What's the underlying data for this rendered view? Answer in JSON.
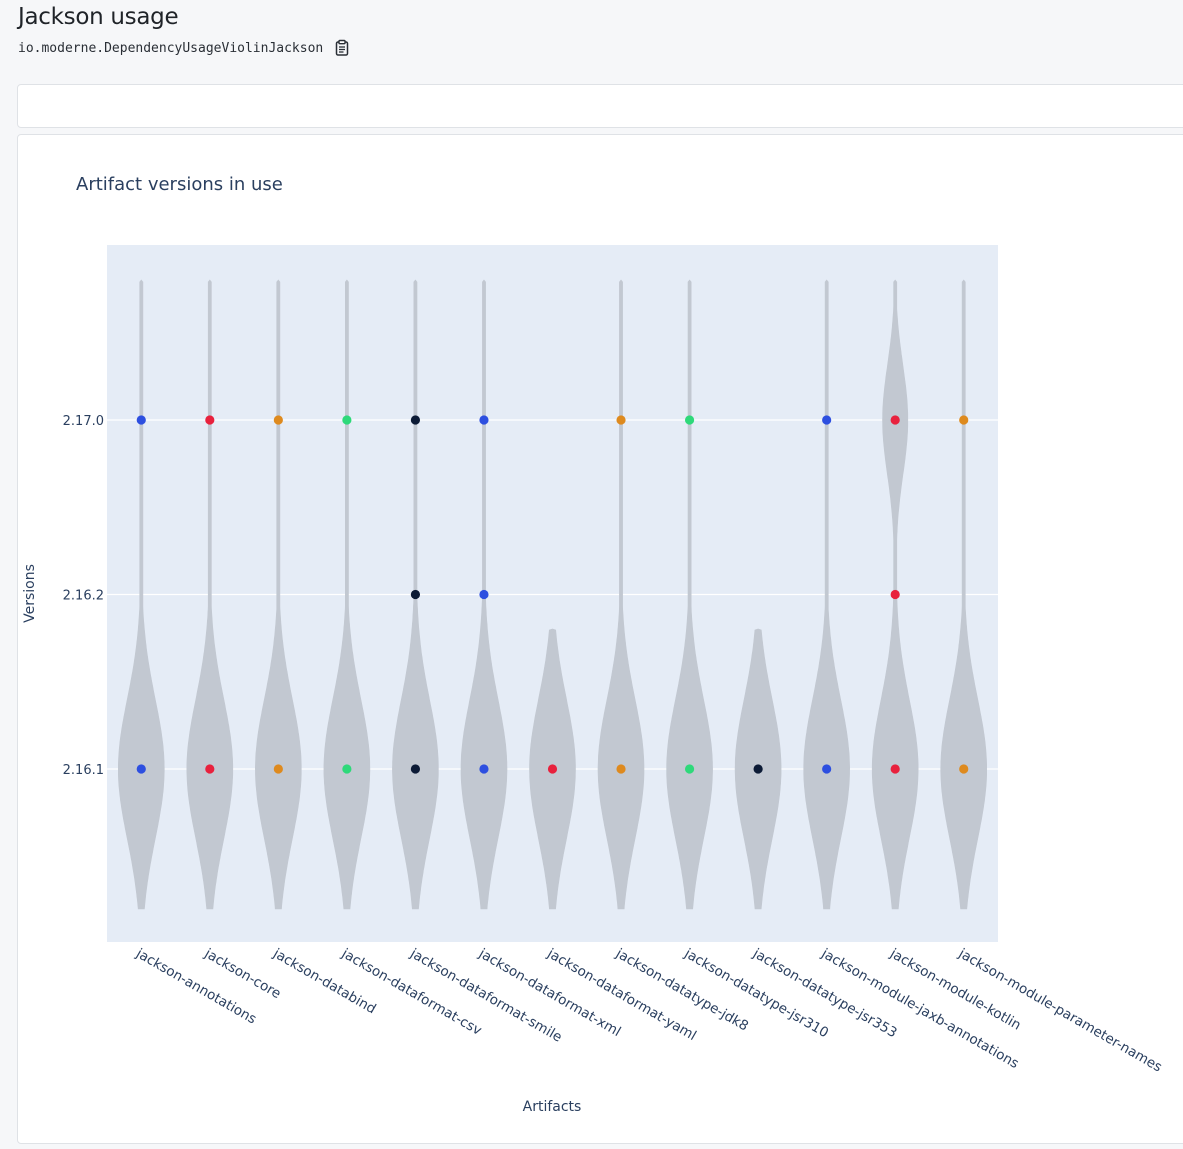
{
  "header": {
    "title": "Jackson usage",
    "recipe_id": "io.moderne.DependencyUsageViolinJackson",
    "copy_icon": "clipboard-icon"
  },
  "chart_data": {
    "type": "violin",
    "title": "Artifact versions in use",
    "xlabel": "Artifacts",
    "ylabel": "Versions",
    "y_categories": [
      "2.16.1",
      "2.16.2",
      "2.17.0"
    ],
    "grid": true,
    "plot_background": "#e5ecf6",
    "violin_color": "#c2c8d1",
    "artifacts": [
      {
        "name": "jackson-annotations",
        "color": "#2d4fe0",
        "versions": [
          "2.16.1",
          "2.17.0"
        ]
      },
      {
        "name": "jackson-core",
        "color": "#e8213d",
        "versions": [
          "2.16.1",
          "2.17.0"
        ]
      },
      {
        "name": "jackson-databind",
        "color": "#de8a1e",
        "versions": [
          "2.16.1",
          "2.17.0"
        ]
      },
      {
        "name": "jackson-dataformat-csv",
        "color": "#2ed97a",
        "versions": [
          "2.16.1",
          "2.17.0"
        ]
      },
      {
        "name": "jackson-dataformat-smile",
        "color": "#0c1b36",
        "versions": [
          "2.16.1",
          "2.16.2",
          "2.17.0"
        ]
      },
      {
        "name": "jackson-dataformat-xml",
        "color": "#2d4fe0",
        "versions": [
          "2.16.1",
          "2.16.2",
          "2.17.0"
        ]
      },
      {
        "name": "jackson-dataformat-yaml",
        "color": "#e8213d",
        "versions": [
          "2.16.1"
        ]
      },
      {
        "name": "jackson-datatype-jdk8",
        "color": "#de8a1e",
        "versions": [
          "2.16.1",
          "2.17.0"
        ]
      },
      {
        "name": "jackson-datatype-jsr310",
        "color": "#2ed97a",
        "versions": [
          "2.16.1",
          "2.17.0"
        ]
      },
      {
        "name": "jackson-datatype-jsr353",
        "color": "#0c1b36",
        "versions": [
          "2.16.1"
        ]
      },
      {
        "name": "jackson-module-jaxb-annotations",
        "color": "#2d4fe0",
        "versions": [
          "2.16.1",
          "2.17.0"
        ]
      },
      {
        "name": "jackson-module-kotlin",
        "color": "#e8213d",
        "versions": [
          "2.16.1",
          "2.16.2",
          "2.17.0"
        ]
      },
      {
        "name": "jackson-module-parameter-names",
        "color": "#de8a1e",
        "versions": [
          "2.16.1",
          "2.17.0"
        ]
      }
    ]
  }
}
